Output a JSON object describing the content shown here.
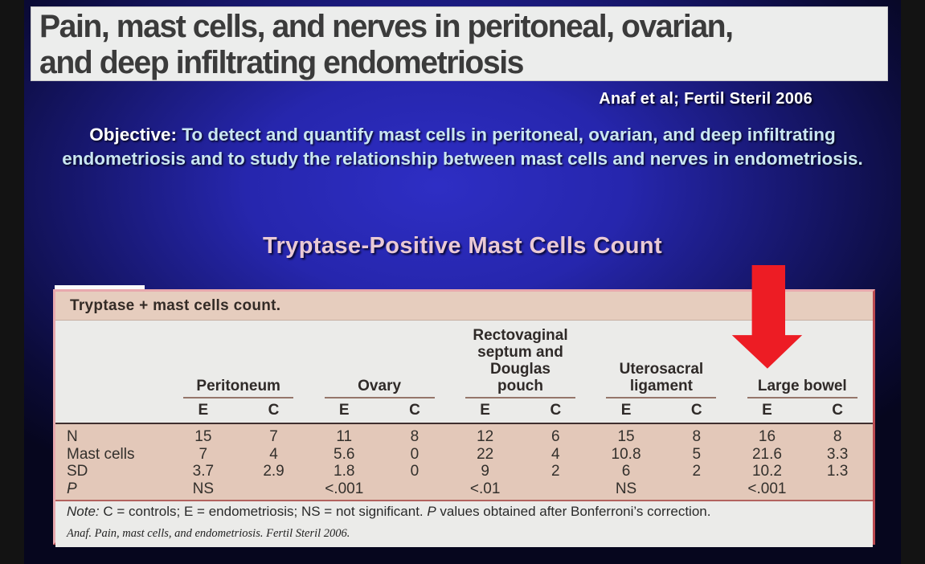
{
  "slide": {
    "title_line1": "Pain, mast cells, and nerves in peritoneal, ovarian,",
    "title_line2": "and deep infiltrating endometriosis",
    "paper_citation": "Anaf et al; Fertil Steril 2006",
    "objective_label": "Objective:",
    "objective_text": "To detect and quantify mast cells in peritoneal, ovarian, and deep infiltrating endometriosis and to study the relationship between mast cells and nerves in endometriosis.",
    "section_heading": "Tryptase-Positive Mast Cells Count"
  },
  "table": {
    "caption": "Tryptase + mast cells count.",
    "groups": [
      {
        "label": "Peritoneum"
      },
      {
        "label": "Ovary"
      },
      {
        "label": "Rectovaginal septum and Douglas pouch"
      },
      {
        "label": "Uterosacral ligament"
      },
      {
        "label": "Large bowel"
      }
    ],
    "subheaders": [
      "E",
      "C"
    ],
    "rows": [
      {
        "label": "N",
        "values": [
          "15",
          "7",
          "11",
          "8",
          "12",
          "6",
          "15",
          "8",
          "16",
          "8"
        ]
      },
      {
        "label": "Mast cells",
        "values": [
          "7",
          "4",
          "5.6",
          "0",
          "22",
          "4",
          "10.8",
          "5",
          "21.6",
          "3.3"
        ]
      },
      {
        "label": "SD",
        "values": [
          "3.7",
          "2.9",
          "1.8",
          "0",
          "9",
          "2",
          "6",
          "2",
          "10.2",
          "1.3"
        ]
      },
      {
        "label": "P",
        "values": [
          "NS",
          "",
          "<.001",
          "",
          "<.01",
          "",
          "NS",
          "",
          "<.001",
          ""
        ]
      }
    ],
    "note": {
      "prefix": "Note:",
      "body": " C = controls; E = endometriosis; NS = not significant. ",
      "p": "P",
      "rest": " values obtained after Bonferroni’s correction."
    },
    "source": "Anaf. Pain, mast cells, and endometriosis. Fertil Steril 2006."
  },
  "annotations": {
    "arrow_target": "Large bowel column"
  },
  "colors": {
    "arrow_red": "#ed1c24",
    "slide_blue_center": "#2e2ec4",
    "slide_blue_edge": "#06061e",
    "banner_bg": "#ecedec",
    "banner_text": "#3b3b3b",
    "heading_pink": "#e9c9d5",
    "objective_cyan": "#c9e6f2",
    "citation_white": "#ffffff",
    "table_header_gray": "#ebebe9",
    "table_data_tan": "#e3c8b9",
    "table_caption_tan": "#e6cdbe",
    "table_border_pink": "#e8a9ae",
    "table_border_red": "#bb4a50"
  }
}
